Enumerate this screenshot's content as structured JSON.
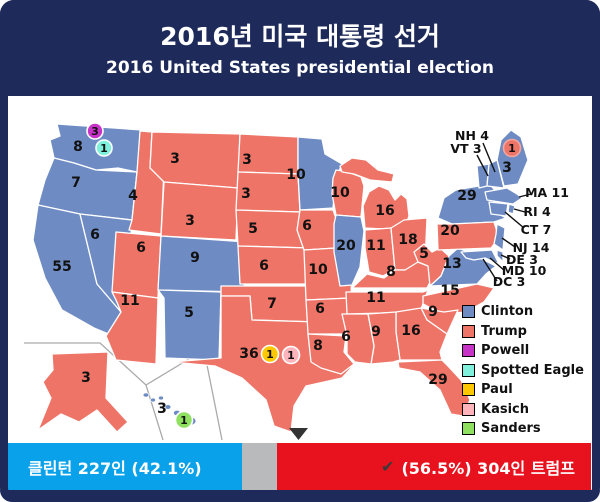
{
  "header": {
    "title_ko": "2016년 미국 대통령 선거",
    "title_en": "2016 United States presidential election"
  },
  "colors": {
    "header_navy": "#1e2a5a",
    "clinton": "#6e8cc3",
    "trump": "#ee7467",
    "powell": "#c733c7",
    "spotted_eagle": "#7ef0dc",
    "paul": "#fdc702",
    "kasich": "#ffb4bb",
    "sanders": "#8ee05e",
    "bar_blue": "#09a1e9",
    "bar_red": "#e8111e",
    "bar_gray": "#b9babb",
    "me02_ring": "#f2a79e",
    "inset_line": "#aaaaaa"
  },
  "legend": [
    {
      "key": "clinton",
      "label": "Clinton"
    },
    {
      "key": "trump",
      "label": "Trump"
    },
    {
      "key": "powell",
      "label": "Powell"
    },
    {
      "key": "spotted_eagle",
      "label": "Spotted Eagle"
    },
    {
      "key": "paul",
      "label": "Paul"
    },
    {
      "key": "kasich",
      "label": "Kasich"
    },
    {
      "key": "sanders",
      "label": "Sanders"
    }
  ],
  "map": {
    "states": [
      {
        "id": "WA",
        "ev": "8",
        "winner": "clinton",
        "show_label": true
      },
      {
        "id": "OR",
        "ev": "7",
        "winner": "clinton",
        "show_label": true
      },
      {
        "id": "CA",
        "ev": "55",
        "winner": "clinton",
        "show_label": true
      },
      {
        "id": "NV",
        "ev": "6",
        "winner": "clinton",
        "show_label": true
      },
      {
        "id": "ID",
        "ev": "4",
        "winner": "trump",
        "show_label": true
      },
      {
        "id": "MT",
        "ev": "3",
        "winner": "trump",
        "show_label": true
      },
      {
        "id": "WY",
        "ev": "3",
        "winner": "trump",
        "show_label": true
      },
      {
        "id": "UT",
        "ev": "6",
        "winner": "trump",
        "show_label": true
      },
      {
        "id": "CO",
        "ev": "9",
        "winner": "clinton",
        "show_label": true
      },
      {
        "id": "AZ",
        "ev": "11",
        "winner": "trump",
        "show_label": true
      },
      {
        "id": "NM",
        "ev": "5",
        "winner": "clinton",
        "show_label": true
      },
      {
        "id": "ND",
        "ev": "3",
        "winner": "trump",
        "show_label": true
      },
      {
        "id": "SD",
        "ev": "3",
        "winner": "trump",
        "show_label": true
      },
      {
        "id": "NE",
        "ev": "5",
        "winner": "trump",
        "show_label": true
      },
      {
        "id": "KS",
        "ev": "6",
        "winner": "trump",
        "show_label": true
      },
      {
        "id": "OK",
        "ev": "7",
        "winner": "trump",
        "show_label": true
      },
      {
        "id": "TX",
        "ev": "36",
        "winner": "trump",
        "show_label": true
      },
      {
        "id": "MN",
        "ev": "10",
        "winner": "clinton",
        "show_label": true
      },
      {
        "id": "IA",
        "ev": "6",
        "winner": "trump",
        "show_label": true
      },
      {
        "id": "MO",
        "ev": "10",
        "winner": "trump",
        "show_label": true
      },
      {
        "id": "AR",
        "ev": "6",
        "winner": "trump",
        "show_label": true
      },
      {
        "id": "LA",
        "ev": "8",
        "winner": "trump",
        "show_label": true
      },
      {
        "id": "WI",
        "ev": "10",
        "winner": "trump",
        "show_label": true
      },
      {
        "id": "IL",
        "ev": "20",
        "winner": "clinton",
        "show_label": true
      },
      {
        "id": "MI",
        "ev": "16",
        "winner": "trump",
        "show_label": true
      },
      {
        "id": "IN",
        "ev": "11",
        "winner": "trump",
        "show_label": true
      },
      {
        "id": "OH",
        "ev": "18",
        "winner": "trump",
        "show_label": true
      },
      {
        "id": "KY",
        "ev": "8",
        "winner": "trump",
        "show_label": true
      },
      {
        "id": "WV",
        "ev": "5",
        "winner": "trump",
        "show_label": true
      },
      {
        "id": "VA",
        "ev": "13",
        "winner": "clinton",
        "show_label": true
      },
      {
        "id": "TN",
        "ev": "11",
        "winner": "trump",
        "show_label": true
      },
      {
        "id": "NC",
        "ev": "15",
        "winner": "trump",
        "show_label": true
      },
      {
        "id": "SC",
        "ev": "9",
        "winner": "trump",
        "show_label": true
      },
      {
        "id": "GA",
        "ev": "16",
        "winner": "trump",
        "show_label": true
      },
      {
        "id": "AL",
        "ev": "9",
        "winner": "trump",
        "show_label": true
      },
      {
        "id": "MS",
        "ev": "6",
        "winner": "trump",
        "show_label": true
      },
      {
        "id": "FL",
        "ev": "29",
        "winner": "trump",
        "show_label": true
      },
      {
        "id": "NY",
        "ev": "29",
        "winner": "clinton",
        "show_label": true
      },
      {
        "id": "PA",
        "ev": "20",
        "winner": "trump",
        "show_label": true
      },
      {
        "id": "ME",
        "ev": "3",
        "winner": "clinton",
        "show_label": true
      },
      {
        "id": "VT",
        "ev": "3",
        "winner": "clinton",
        "show_label": false
      },
      {
        "id": "NH",
        "ev": "4",
        "winner": "clinton",
        "show_label": false
      },
      {
        "id": "MA",
        "ev": "11",
        "winner": "clinton",
        "show_label": false
      },
      {
        "id": "CT",
        "ev": "7",
        "winner": "clinton",
        "show_label": false
      },
      {
        "id": "RI",
        "ev": "4",
        "winner": "clinton",
        "show_label": false
      },
      {
        "id": "NJ",
        "ev": "14",
        "winner": "clinton",
        "show_label": false
      },
      {
        "id": "DE",
        "ev": "3",
        "winner": "clinton",
        "show_label": false
      },
      {
        "id": "MD",
        "ev": "10",
        "winner": "clinton",
        "show_label": false
      },
      {
        "id": "DC",
        "ev": "3",
        "winner": "clinton",
        "show_label": false
      },
      {
        "id": "AK",
        "ev": "3",
        "winner": "trump",
        "show_label": true
      },
      {
        "id": "HI",
        "ev": "3",
        "winner": "clinton",
        "show_label": true
      }
    ],
    "callouts": [
      {
        "id": "NH",
        "text": "NH 4"
      },
      {
        "id": "VT",
        "text": "VT 3"
      },
      {
        "id": "MA",
        "text": "MA 11"
      },
      {
        "id": "RI",
        "text": "RI 4"
      },
      {
        "id": "CT",
        "text": "CT 7"
      },
      {
        "id": "NJ",
        "text": "NJ 14"
      },
      {
        "id": "DE",
        "text": "DE 3"
      },
      {
        "id": "MD",
        "text": "MD 10"
      },
      {
        "id": "DC",
        "text": "DC 3"
      }
    ],
    "markers": [
      {
        "id": "powell",
        "value": "3",
        "color_key": "powell"
      },
      {
        "id": "spotted_eagle",
        "value": "1",
        "color_key": "spotted_eagle"
      },
      {
        "id": "me02",
        "value": "1",
        "color_key": "trump"
      },
      {
        "id": "paul",
        "value": "1",
        "color_key": "paul"
      },
      {
        "id": "kasich",
        "value": "1",
        "color_key": "kasich"
      },
      {
        "id": "sanders",
        "value": "1",
        "color_key": "sanders"
      }
    ]
  },
  "results_bar": {
    "clinton_label": "클린턴 227인 (42.1%)",
    "checkmark": "✔",
    "trump_label": "(56.5%) 304인 트럼프"
  },
  "results": {
    "clinton_ev": 227,
    "clinton_pct": "42.1%",
    "trump_ev": 304,
    "trump_pct": "56.5%"
  }
}
